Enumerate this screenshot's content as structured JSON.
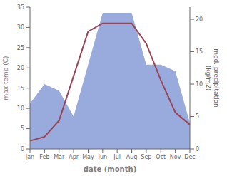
{
  "chart_data": {
    "type": "line",
    "categories": [
      "Jan",
      "Feb",
      "Mar",
      "Apr",
      "May",
      "Jun",
      "Jul",
      "Aug",
      "Sep",
      "Oct",
      "Nov",
      "Dec"
    ],
    "series": [
      {
        "type": "area",
        "axis": "y2",
        "color": "#99aadd",
        "values": [
          7.0,
          10.0,
          9.0,
          5.0,
          13.0,
          21.0,
          21.0,
          21.0,
          13.0,
          13.0,
          12.0,
          4.0
        ]
      },
      {
        "type": "line",
        "color": "#994455",
        "values": [
          2.0,
          3.0,
          7.0,
          18.0,
          29.0,
          31.0,
          31.0,
          31.0,
          26.0,
          17.0,
          9.0,
          6.0
        ]
      }
    ],
    "xlabel": "date (month)",
    "ylabel": "max temp (C)",
    "y2label": "med. precipitation\n(kg/m2)",
    "ylim": [
      0,
      35
    ],
    "yticks": [
      0,
      5,
      10,
      15,
      20,
      25,
      30,
      35
    ],
    "y2lim": [
      0,
      21.875
    ],
    "y2ticks": [
      0,
      5,
      10,
      15,
      20
    ],
    "grid": false
  }
}
